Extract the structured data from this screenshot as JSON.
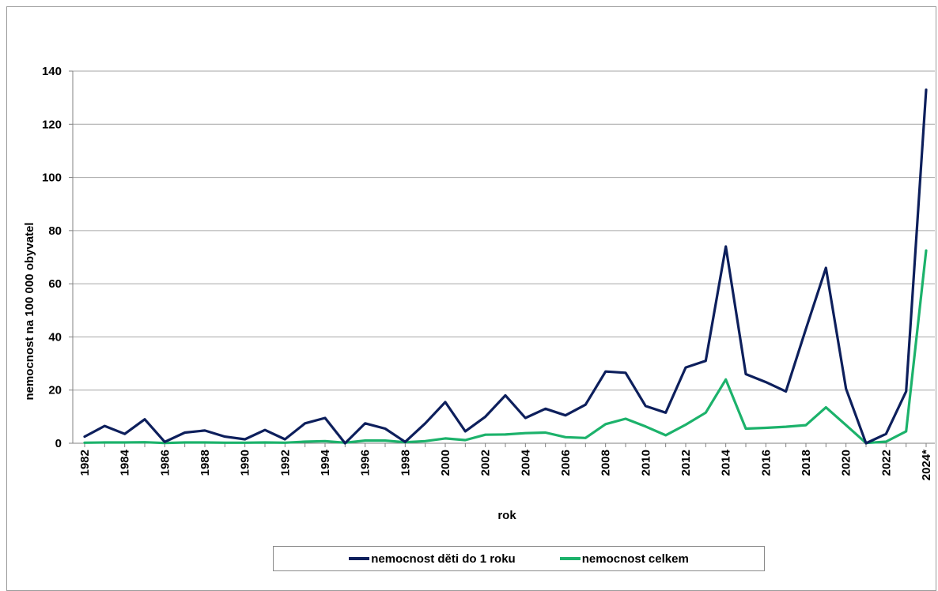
{
  "chart_data": {
    "type": "line",
    "title": "",
    "xlabel": "rok",
    "ylabel": "nemocnost na 100 000 obyvatel",
    "ylim": [
      0,
      140
    ],
    "yticks": [
      0,
      20,
      40,
      60,
      80,
      100,
      120,
      140
    ],
    "grid": true,
    "legend_position": "bottom",
    "x": [
      "1982",
      "1983",
      "1984",
      "1985",
      "1986",
      "1987",
      "1988",
      "1989",
      "1990",
      "1991",
      "1992",
      "1993",
      "1994",
      "1995",
      "1996",
      "1997",
      "1998",
      "1999",
      "2000",
      "2001",
      "2002",
      "2003",
      "2004",
      "2005",
      "2006",
      "2007",
      "2008",
      "2009",
      "2010",
      "2011",
      "2012",
      "2013",
      "2014",
      "2015",
      "2016",
      "2017",
      "2018",
      "2019",
      "2020",
      "2021",
      "2022",
      "2023",
      "2024*"
    ],
    "x_tick_labels": [
      "1982",
      "1984",
      "1986",
      "1988",
      "1990",
      "1992",
      "1994",
      "1996",
      "1998",
      "2000",
      "2002",
      "2004",
      "2006",
      "2008",
      "2010",
      "2012",
      "2014",
      "2016",
      "2018",
      "2020",
      "2022",
      "2024*"
    ],
    "series": [
      {
        "name": "nemocnost dĕti do 1 roku",
        "color": "#0d1f5c",
        "values": [
          2.5,
          6.5,
          3.5,
          9,
          0.5,
          4,
          4.8,
          2.5,
          1.5,
          5,
          1.5,
          7.5,
          9.5,
          0,
          7.5,
          5.5,
          0.5,
          7.5,
          15.5,
          4.5,
          10,
          18,
          9.5,
          13,
          10.5,
          14.5,
          27,
          26.5,
          14,
          11.5,
          28.5,
          31,
          74,
          26,
          23,
          19.5,
          43,
          66,
          20.5,
          0,
          3.5,
          19.5,
          133
        ]
      },
      {
        "name": "nemocnost celkem",
        "color": "#1cb26b",
        "values": [
          0.2,
          0.3,
          0.3,
          0.4,
          0.1,
          0.3,
          0.3,
          0.2,
          0.2,
          0.3,
          0.2,
          0.6,
          0.8,
          0.2,
          1,
          1,
          0.4,
          0.8,
          1.8,
          1.2,
          3.2,
          3.3,
          3.8,
          4,
          2.3,
          2,
          7.2,
          9.2,
          6.3,
          3,
          7,
          11.5,
          24,
          5.5,
          5.8,
          6.2,
          6.8,
          13.5,
          6.8,
          0.1,
          0.6,
          4.5,
          72.5
        ]
      }
    ]
  }
}
